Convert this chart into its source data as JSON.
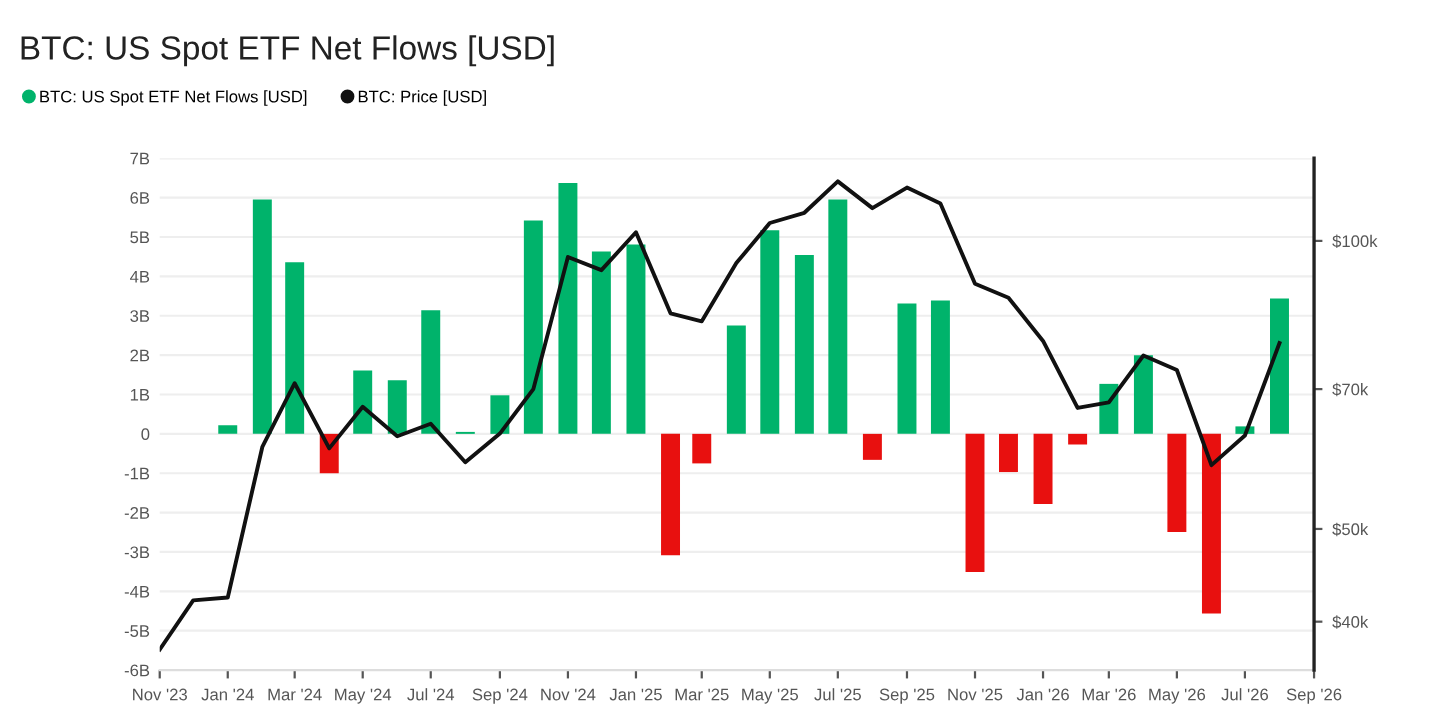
{
  "chart_data": {
    "type": "bar",
    "title": "BTC: US Spot ETF Net Flows [USD]",
    "x": [
      "2024-01",
      "2024-02",
      "2024-03",
      "2024-04",
      "2024-05",
      "2024-06",
      "2024-07",
      "2024-08",
      "2024-09",
      "2024-10",
      "2024-11",
      "2024-12",
      "2025-01",
      "2025-02",
      "2025-03",
      "2025-04",
      "2025-05",
      "2025-06",
      "2025-07",
      "2025-08",
      "2025-09",
      "2025-10",
      "2025-11",
      "2025-12",
      "2026-01",
      "2026-02",
      "2026-03",
      "2026-04",
      "2026-05",
      "2026-06",
      "2026-07",
      "2026-08"
    ],
    "series": [
      {
        "name": "BTC: US Spot ETF Net Flows [USD]",
        "color": "#00b36b",
        "colors": [
          "#00b36b",
          "#00b36b",
          "#00b36b",
          "#e8100f",
          "#00b36b",
          "#00b36b",
          "#00b36b",
          "#00b36b",
          "#00b36b",
          "#00b36b",
          "#00b36b",
          "#00b36b",
          "#00b36b",
          "#e8100f",
          "#e8100f",
          "#00b36b",
          "#00b36b",
          "#00b36b",
          "#00b36b",
          "#e8100f",
          "#00b36b",
          "#00b36b",
          "#e8100f",
          "#e8100f",
          "#e8100f",
          "#e8100f",
          "#00b36b",
          "#00b36b",
          "#e8100f",
          "#e8100f",
          "#00b36b",
          "#00b36b"
        ],
        "values": [
          0.22,
          5.95,
          4.36,
          -1.0,
          1.61,
          1.36,
          3.14,
          0.05,
          0.98,
          5.42,
          6.37,
          4.63,
          4.81,
          -3.08,
          -0.75,
          2.75,
          5.17,
          4.54,
          5.95,
          -0.66,
          3.31,
          3.39,
          -3.51,
          -0.97,
          -1.78,
          -0.27,
          1.27,
          2.0,
          -2.49,
          -4.56,
          0.19,
          3.44
        ]
      },
      {
        "name": "BTC: Price [USD]",
        "type": "line",
        "axis": "y2",
        "color": "#111111",
        "x": [
          "2023-11",
          "2023-12",
          "2024-01",
          "2024-02",
          "2024-03",
          "2024-04",
          "2024-05",
          "2024-06",
          "2024-07",
          "2024-08",
          "2024-09",
          "2024-10",
          "2024-11",
          "2024-12",
          "2025-01",
          "2025-02",
          "2025-03",
          "2025-04",
          "2025-05",
          "2025-06",
          "2025-07",
          "2025-08",
          "2025-09",
          "2025-10",
          "2025-11",
          "2025-12",
          "2026-01",
          "2026-02",
          "2026-03",
          "2026-04",
          "2026-05",
          "2026-06",
          "2026-07",
          "2026-08"
        ],
        "values": [
          37400,
          42100,
          42400,
          60900,
          71000,
          60700,
          67100,
          62500,
          64400,
          58700,
          62900,
          70000,
          96200,
          93200,
          102100,
          84000,
          82400,
          94800,
          104400,
          107000,
          115400,
          108200,
          113700,
          109400,
          90200,
          87200,
          78600,
          66900,
          67800,
          75900,
          73300,
          58300,
          62600,
          78200
        ]
      }
    ],
    "xlim": [
      "2023-11",
      "2026-09"
    ],
    "xticks": [
      {
        "value": "2023-11",
        "label": "Nov '23"
      },
      {
        "value": "2024-01",
        "label": "Jan '24"
      },
      {
        "value": "2024-03",
        "label": "Mar '24"
      },
      {
        "value": "2024-05",
        "label": "May '24"
      },
      {
        "value": "2024-07",
        "label": "Jul '24"
      },
      {
        "value": "2024-09",
        "label": "Sep '24"
      },
      {
        "value": "2024-11",
        "label": "Nov '24"
      },
      {
        "value": "2025-01",
        "label": "Jan '25"
      },
      {
        "value": "2025-03",
        "label": "Mar '25"
      },
      {
        "value": "2025-05",
        "label": "May '25"
      },
      {
        "value": "2025-07",
        "label": "Jul '25"
      },
      {
        "value": "2025-09",
        "label": "Sep '25"
      },
      {
        "value": "2025-11",
        "label": "Nov '25"
      },
      {
        "value": "2026-01",
        "label": "Jan '26"
      },
      {
        "value": "2026-03",
        "label": "Mar '26"
      },
      {
        "value": "2026-05",
        "label": "May '26"
      },
      {
        "value": "2026-07",
        "label": "Jul '26"
      },
      {
        "value": "2026-09",
        "label": "Sep '26"
      }
    ],
    "ylim": [
      -6,
      7
    ],
    "yticks": [
      {
        "value": -6,
        "label": "-6B"
      },
      {
        "value": -5,
        "label": "-5B"
      },
      {
        "value": -4,
        "label": "-4B"
      },
      {
        "value": -3,
        "label": "-3B"
      },
      {
        "value": -2,
        "label": "-2B"
      },
      {
        "value": -1,
        "label": "-1B"
      },
      0,
      {
        "value": 1,
        "label": "1B"
      },
      {
        "value": 2,
        "label": "2B"
      },
      {
        "value": 3,
        "label": "3B"
      },
      {
        "value": 4,
        "label": "4B"
      },
      {
        "value": 5,
        "label": "5B"
      },
      {
        "value": 6,
        "label": "6B"
      },
      {
        "value": 7,
        "label": "7B"
      }
    ],
    "y2lim": [
      35600,
      122000
    ],
    "y2ticks": [
      {
        "value": 40000,
        "label": "$40k"
      },
      {
        "value": 50000,
        "label": "$50k"
      },
      {
        "value": 70000,
        "label": "$70k"
      },
      {
        "value": 100000,
        "label": "$100k"
      }
    ],
    "log": "y2",
    "grid": "y",
    "legend": "top left",
    "marker": "none",
    "line_style": "solid"
  }
}
